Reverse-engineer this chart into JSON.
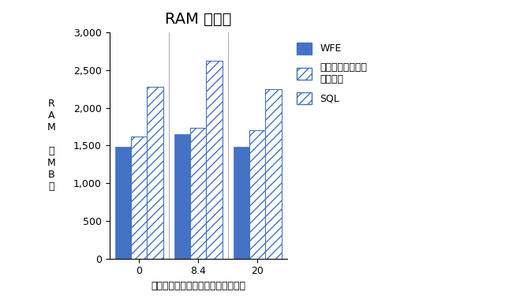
{
  "title": "RAM 使用率",
  "xlabel": "１分あたりに作成される平均用語数",
  "ylabel_lines": [
    "R",
    "A",
    "M",
    "",
    "（",
    "M",
    "B",
    "）"
  ],
  "legend_app": "アプリケーション\nサーバー",
  "categories": [
    "0",
    "8.4",
    "20"
  ],
  "wfe_values": [
    1480,
    1650,
    1480
  ],
  "app_values": [
    1620,
    1730,
    1700
  ],
  "sql_values": [
    2280,
    2620,
    2250
  ],
  "bar_color_solid": "#4472C4",
  "bar_color_hatch_face": "#FFFFFF",
  "bar_color_hatch_edge": "#4472C4",
  "hatch_pattern": "///",
  "ylim": [
    0,
    3000
  ],
  "yticks": [
    0,
    500,
    1000,
    1500,
    2000,
    2500,
    3000
  ],
  "ytick_labels": [
    "0",
    "500",
    "1,000",
    "1,500",
    "2,000",
    "2,500",
    "3,000"
  ],
  "title_fontsize": 14,
  "axis_fontsize": 9,
  "legend_fontsize": 9,
  "ylabel_fontsize": 9,
  "bar_width": 0.27,
  "background_color": "#FFFFFF",
  "separator_color": "#AAAAAA"
}
